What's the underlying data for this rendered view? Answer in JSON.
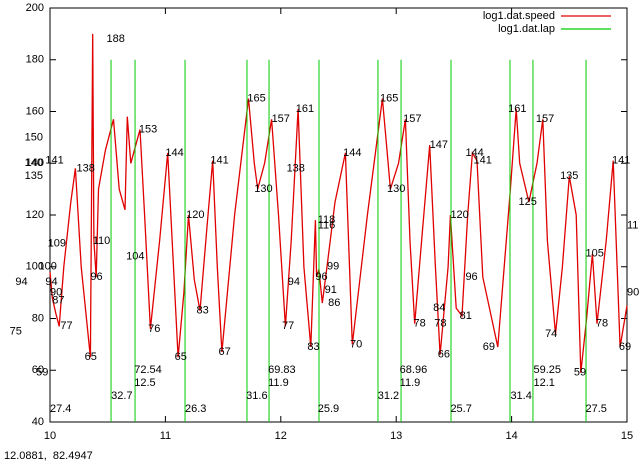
{
  "chart_data": {
    "type": "line",
    "series": [
      {
        "name": "log1.dat.speed",
        "color": "#e00000",
        "style": "line",
        "x": [
          10.0,
          10.02,
          10.05,
          10.08,
          10.12,
          10.18,
          10.22,
          10.27,
          10.35,
          10.37,
          10.38,
          10.4,
          10.42,
          10.48,
          10.55,
          10.6,
          10.65,
          10.67,
          10.7,
          10.78,
          10.82,
          10.87,
          10.95,
          11.02,
          11.07,
          11.11,
          11.16,
          11.2,
          11.25,
          11.3,
          11.36,
          11.41,
          11.45,
          11.49,
          11.6,
          11.72,
          11.77,
          11.8,
          11.86,
          11.92,
          11.98,
          12.04,
          12.09,
          12.12,
          12.15,
          12.2,
          12.26,
          12.3,
          12.31,
          12.33,
          12.36,
          12.4,
          12.47,
          12.56,
          12.62,
          12.75,
          12.88,
          12.92,
          12.95,
          13.02,
          13.08,
          13.12,
          13.16,
          13.22,
          13.29,
          13.34,
          13.38,
          13.45,
          13.47,
          13.52,
          13.57,
          13.62,
          13.66,
          13.7,
          13.75,
          13.88,
          13.99,
          14.04,
          14.07,
          14.15,
          14.22,
          14.27,
          14.31,
          14.38,
          14.44,
          14.5,
          14.56,
          14.6,
          14.65,
          14.7,
          14.74,
          14.82,
          14.88,
          14.94,
          15.0
        ],
        "values": [
          98,
          88,
          82,
          77,
          100,
          125,
          138,
          100,
          65,
          190,
          110,
          96,
          130,
          145,
          157,
          130,
          122,
          158,
          140,
          153,
          120,
          76,
          110,
          144,
          100,
          65,
          90,
          120,
          95,
          83,
          115,
          141,
          100,
          67,
          120,
          165,
          140,
          130,
          140,
          157,
          120,
          77,
          110,
          135,
          161,
          100,
          69,
          118,
          96,
          99,
          86,
          100,
          125,
          144,
          70,
          120,
          165,
          145,
          130,
          140,
          157,
          110,
          78,
          110,
          147,
          100,
          66,
          100,
          120,
          84,
          81,
          120,
          144,
          141,
          96,
          69,
          130,
          161,
          140,
          125,
          140,
          157,
          110,
          74,
          100,
          135,
          120,
          59,
          80,
          105,
          78,
          110,
          141,
          69,
          85
        ]
      },
      {
        "name": "log1.dat.lap",
        "color": "#00cc00",
        "style": "impulses",
        "x": [
          10.529,
          10.737,
          11.17,
          11.707,
          11.898,
          12.331,
          12.842,
          13.042,
          13.475,
          13.986,
          14.185,
          14.645
        ],
        "values": [
          180,
          180,
          180,
          180,
          180,
          180,
          180,
          180,
          180,
          180,
          180,
          180
        ]
      }
    ],
    "xlim": [
      10,
      15
    ],
    "xticks": [
      10,
      11,
      12,
      13,
      14,
      15
    ],
    "ylim": [
      40,
      200
    ],
    "yticks": [
      40,
      60,
      80,
      100,
      120,
      140,
      160,
      180,
      200
    ],
    "legend": "top-right",
    "annotations": [
      {
        "text": "141",
        "x": 9.96,
        "y": 141
      },
      {
        "text": "138",
        "x": 10.23,
        "y": 138
      },
      {
        "text": "109",
        "x": 9.98,
        "y": 109
      },
      {
        "text": "100",
        "x": 9.9,
        "y": 100
      },
      {
        "text": "94",
        "x": 9.96,
        "y": 94
      },
      {
        "text": "90",
        "x": 10.0,
        "y": 90
      },
      {
        "text": "87",
        "x": 10.02,
        "y": 87
      },
      {
        "text": "77",
        "x": 10.09,
        "y": 77
      },
      {
        "text": "65",
        "x": 10.3,
        "y": 65
      },
      {
        "text": "188",
        "x": 10.49,
        "y": 188
      },
      {
        "text": "110",
        "x": 10.37,
        "y": 110
      },
      {
        "text": "96",
        "x": 10.35,
        "y": 96
      },
      {
        "text": "153",
        "x": 10.77,
        "y": 153
      },
      {
        "text": "104",
        "x": 10.66,
        "y": 104
      },
      {
        "text": "76",
        "x": 10.85,
        "y": 76
      },
      {
        "text": "144",
        "x": 11.0,
        "y": 144
      },
      {
        "text": "65",
        "x": 11.08,
        "y": 65
      },
      {
        "text": "120",
        "x": 11.18,
        "y": 120
      },
      {
        "text": "83",
        "x": 11.27,
        "y": 83
      },
      {
        "text": "141",
        "x": 11.39,
        "y": 141
      },
      {
        "text": "67",
        "x": 11.46,
        "y": 67
      },
      {
        "text": "165",
        "x": 11.71,
        "y": 165
      },
      {
        "text": "130",
        "x": 11.77,
        "y": 130
      },
      {
        "text": "157",
        "x": 11.92,
        "y": 157
      },
      {
        "text": "77",
        "x": 12.01,
        "y": 77
      },
      {
        "text": "161",
        "x": 12.13,
        "y": 161
      },
      {
        "text": "138",
        "x": 12.05,
        "y": 138
      },
      {
        "text": "94",
        "x": 12.06,
        "y": 94
      },
      {
        "text": "83",
        "x": 12.23,
        "y": 69
      },
      {
        "text": "118",
        "x": 12.32,
        "y": 118
      },
      {
        "text": "116",
        "x": 12.32,
        "y": 116
      },
      {
        "text": "99",
        "x": 12.4,
        "y": 100
      },
      {
        "text": "96",
        "x": 12.3,
        "y": 96
      },
      {
        "text": "91",
        "x": 12.38,
        "y": 91
      },
      {
        "text": "86",
        "x": 12.41,
        "y": 86
      },
      {
        "text": "144",
        "x": 12.54,
        "y": 144
      },
      {
        "text": "70",
        "x": 12.6,
        "y": 70
      },
      {
        "text": "165",
        "x": 12.86,
        "y": 165
      },
      {
        "text": "130",
        "x": 12.92,
        "y": 130
      },
      {
        "text": "157",
        "x": 13.06,
        "y": 157
      },
      {
        "text": "78",
        "x": 13.15,
        "y": 78
      },
      {
        "text": "147",
        "x": 13.29,
        "y": 147
      },
      {
        "text": "66",
        "x": 13.36,
        "y": 66
      },
      {
        "text": "120",
        "x": 13.47,
        "y": 120
      },
      {
        "text": "84",
        "x": 13.32,
        "y": 84
      },
      {
        "text": "78",
        "x": 13.33,
        "y": 78
      },
      {
        "text": "81",
        "x": 13.55,
        "y": 81
      },
      {
        "text": "144",
        "x": 13.6,
        "y": 144
      },
      {
        "text": "141",
        "x": 13.67,
        "y": 141
      },
      {
        "text": "96",
        "x": 13.6,
        "y": 96
      },
      {
        "text": "69",
        "x": 13.75,
        "y": 69
      },
      {
        "text": "161",
        "x": 13.97,
        "y": 161
      },
      {
        "text": "125",
        "x": 14.06,
        "y": 125
      },
      {
        "text": "157",
        "x": 14.21,
        "y": 157
      },
      {
        "text": "74",
        "x": 14.29,
        "y": 74
      },
      {
        "text": "135",
        "x": 14.42,
        "y": 135
      },
      {
        "text": "59",
        "x": 14.54,
        "y": 59
      },
      {
        "text": "105",
        "x": 14.64,
        "y": 105
      },
      {
        "text": "78",
        "x": 14.73,
        "y": 78
      },
      {
        "text": "141",
        "x": 14.87,
        "y": 141
      },
      {
        "text": "69",
        "x": 14.93,
        "y": 69
      },
      {
        "text": "11",
        "x": 15.0,
        "y": 116
      },
      {
        "text": "90",
        "x": 15.0,
        "y": 90
      },
      {
        "text": "150",
        "x": 9.78,
        "y": 150
      },
      {
        "text": "140",
        "x": 9.78,
        "y": 140
      },
      {
        "text": "135",
        "x": 9.78,
        "y": 135
      },
      {
        "text": "94",
        "x": 9.7,
        "y": 94
      },
      {
        "text": "75",
        "x": 9.65,
        "y": 75
      },
      {
        "text": "59",
        "x": 9.88,
        "y": 59
      },
      {
        "text": "27.4",
        "x": 10.0,
        "y": 45
      },
      {
        "text": "32.7",
        "x": 10.53,
        "y": 50
      },
      {
        "text": "72.54",
        "x": 10.73,
        "y": 60
      },
      {
        "text": "12.5",
        "x": 10.73,
        "y": 55
      },
      {
        "text": "26.3",
        "x": 11.17,
        "y": 45
      },
      {
        "text": "31.6",
        "x": 11.7,
        "y": 50
      },
      {
        "text": "69.83",
        "x": 11.89,
        "y": 60
      },
      {
        "text": "11.9",
        "x": 11.89,
        "y": 55
      },
      {
        "text": "25.9",
        "x": 12.32,
        "y": 45
      },
      {
        "text": "31.2",
        "x": 12.84,
        "y": 50
      },
      {
        "text": "68.96",
        "x": 13.03,
        "y": 60
      },
      {
        "text": "11.9",
        "x": 13.03,
        "y": 55
      },
      {
        "text": "25.7",
        "x": 13.47,
        "y": 45
      },
      {
        "text": "31.4",
        "x": 13.99,
        "y": 50
      },
      {
        "text": "59.25",
        "x": 14.19,
        "y": 60
      },
      {
        "text": "12.1",
        "x": 14.19,
        "y": 55
      },
      {
        "text": "27.5",
        "x": 14.64,
        "y": 45
      }
    ],
    "status": "12.0881,  82.4947"
  }
}
